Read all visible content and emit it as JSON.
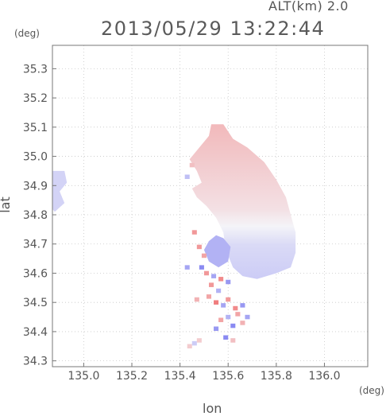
{
  "header": {
    "altitude_label": "ALT(km)  2.0",
    "timestamp": "2013/05/29 13:22:44"
  },
  "chart_data": {
    "type": "heatmap",
    "title": "2013/05/29 13:22:44",
    "subtitle": "ALT(km)  2.0",
    "xlabel": "lon",
    "ylabel": "lat",
    "x_unit": "(deg)",
    "y_unit": "(deg)",
    "xlim": [
      134.87,
      136.18
    ],
    "ylim": [
      34.28,
      35.38
    ],
    "x_ticks": [
      "135.0",
      "135.2",
      "135.4",
      "135.6",
      "135.8",
      "136.0"
    ],
    "y_ticks": [
      "35.3",
      "35.2",
      "35.1",
      "35.0",
      "34.9",
      "34.8",
      "34.7",
      "34.6",
      "34.5",
      "34.4",
      "34.3"
    ],
    "grid": true,
    "colors": {
      "positive": "#f07070",
      "negative": "#7070f0",
      "neutral": "#f4f4f8"
    },
    "regions": [
      {
        "kind": "main",
        "points": [
          [
            135.53,
            35.11
          ],
          [
            135.58,
            35.11
          ],
          [
            135.62,
            35.06
          ],
          [
            135.68,
            35.03
          ],
          [
            135.75,
            34.98
          ],
          [
            135.8,
            34.92
          ],
          [
            135.84,
            34.86
          ],
          [
            135.86,
            34.8
          ],
          [
            135.88,
            34.74
          ],
          [
            135.88,
            34.67
          ],
          [
            135.86,
            34.62
          ],
          [
            135.8,
            34.6
          ],
          [
            135.72,
            34.58
          ],
          [
            135.66,
            34.59
          ],
          [
            135.62,
            34.62
          ],
          [
            135.59,
            34.68
          ],
          [
            135.58,
            34.74
          ],
          [
            135.55,
            34.79
          ],
          [
            135.51,
            34.83
          ],
          [
            135.47,
            34.86
          ],
          [
            135.45,
            34.89
          ],
          [
            135.49,
            34.91
          ],
          [
            135.47,
            34.95
          ],
          [
            135.44,
            34.99
          ],
          [
            135.48,
            35.03
          ],
          [
            135.52,
            35.07
          ]
        ],
        "value_top": 0.45,
        "value_bottom": -0.3
      },
      {
        "kind": "west",
        "points": [
          [
            134.87,
            34.95
          ],
          [
            134.92,
            34.95
          ],
          [
            134.93,
            34.91
          ],
          [
            134.9,
            34.88
          ],
          [
            134.92,
            34.84
          ],
          [
            134.88,
            34.81
          ],
          [
            134.87,
            34.82
          ]
        ],
        "value": -0.25
      },
      {
        "kind": "sw-blob",
        "points": [
          [
            135.52,
            34.71
          ],
          [
            135.55,
            34.73
          ],
          [
            135.58,
            34.72
          ],
          [
            135.61,
            34.69
          ],
          [
            135.6,
            34.64
          ],
          [
            135.56,
            34.62
          ],
          [
            135.52,
            34.64
          ],
          [
            135.5,
            34.68
          ]
        ],
        "value": -0.5
      }
    ],
    "cells": [
      {
        "lon": 135.48,
        "lat": 34.69,
        "value": 0.7
      },
      {
        "lon": 135.5,
        "lat": 34.66,
        "value": 0.6
      },
      {
        "lon": 135.49,
        "lat": 34.62,
        "value": -0.8
      },
      {
        "lon": 135.51,
        "lat": 34.6,
        "value": 0.7
      },
      {
        "lon": 135.54,
        "lat": 34.59,
        "value": -0.6
      },
      {
        "lon": 135.57,
        "lat": 34.58,
        "value": 0.8
      },
      {
        "lon": 135.6,
        "lat": 34.57,
        "value": -0.7
      },
      {
        "lon": 135.53,
        "lat": 34.56,
        "value": 0.7
      },
      {
        "lon": 135.56,
        "lat": 34.54,
        "value": -0.5
      },
      {
        "lon": 135.52,
        "lat": 34.52,
        "value": 0.6
      },
      {
        "lon": 135.55,
        "lat": 34.5,
        "value": 0.9
      },
      {
        "lon": 135.58,
        "lat": 34.49,
        "value": -0.6
      },
      {
        "lon": 135.6,
        "lat": 34.51,
        "value": 0.7
      },
      {
        "lon": 135.63,
        "lat": 34.48,
        "value": 0.8
      },
      {
        "lon": 135.66,
        "lat": 34.49,
        "value": -0.7
      },
      {
        "lon": 135.64,
        "lat": 34.46,
        "value": 0.6
      },
      {
        "lon": 135.6,
        "lat": 34.45,
        "value": -0.5
      },
      {
        "lon": 135.57,
        "lat": 34.44,
        "value": 0.6
      },
      {
        "lon": 135.62,
        "lat": 34.42,
        "value": -0.8
      },
      {
        "lon": 135.66,
        "lat": 34.43,
        "value": 0.5
      },
      {
        "lon": 135.68,
        "lat": 34.45,
        "value": -0.6
      },
      {
        "lon": 135.55,
        "lat": 34.41,
        "value": -0.7
      },
      {
        "lon": 135.59,
        "lat": 34.38,
        "value": -0.8
      },
      {
        "lon": 135.62,
        "lat": 34.37,
        "value": 0.4
      },
      {
        "lon": 135.44,
        "lat": 34.35,
        "value": 0.3
      },
      {
        "lon": 135.46,
        "lat": 34.36,
        "value": -0.3
      },
      {
        "lon": 135.48,
        "lat": 34.37,
        "value": 0.3
      },
      {
        "lon": 135.43,
        "lat": 34.62,
        "value": -0.6
      },
      {
        "lon": 135.46,
        "lat": 34.74,
        "value": 0.7
      },
      {
        "lon": 135.47,
        "lat": 34.51,
        "value": 0.5
      },
      {
        "lon": 135.45,
        "lat": 34.97,
        "value": 0.4
      },
      {
        "lon": 135.43,
        "lat": 34.93,
        "value": -0.4
      }
    ]
  }
}
